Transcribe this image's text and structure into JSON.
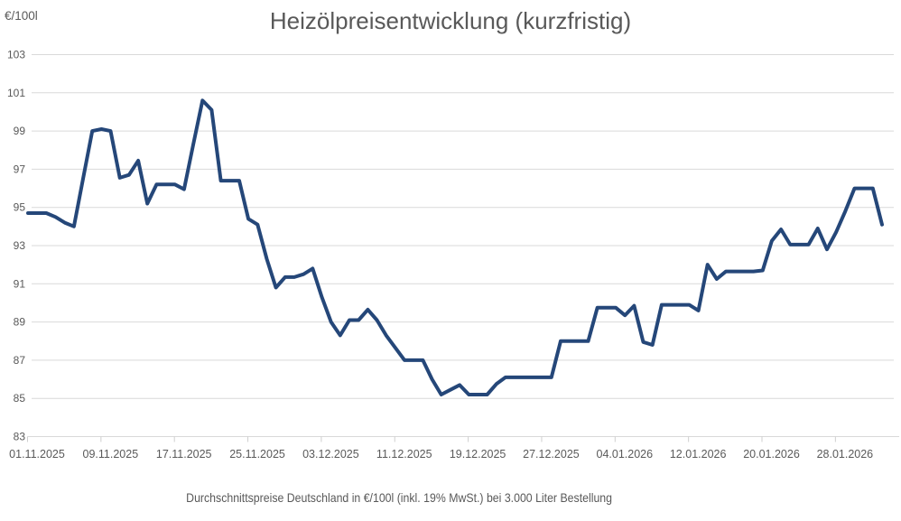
{
  "title": "Heizölpreisentwicklung (kurzfristig)",
  "y_unit_label": "€/100l",
  "footer": "Durchschnittspreise Deutschland in €/100l (inkl. 19% MwSt.) bei 3.000 Liter Bestellung",
  "colors": {
    "line": "#254779",
    "title_text": "#595959",
    "axis_text": "#595959",
    "gridline": "#d9d9d9",
    "tick": "#cfcfcf",
    "background": "#ffffff"
  },
  "chart_data": {
    "type": "line",
    "title": "Heizölpreisentwicklung (kurzfristig)",
    "subtitle": "Durchschnittspreise Deutschland in €/100l (inkl. 19% MwSt.) bei 3.000 Liter Bestellung",
    "ylabel": "€/100l",
    "ylim": [
      83,
      103
    ],
    "yticks": [
      103,
      101,
      99,
      97,
      95,
      93,
      91,
      89,
      87,
      85,
      83
    ],
    "xtick_labels": [
      "01.11.2025",
      "09.11.2025",
      "17.11.2025",
      "25.11.2025",
      "03.12.2025",
      "11.12.2025",
      "19.12.2025",
      "27.12.2025",
      "04.01.2026",
      "12.01.2026",
      "20.01.2026",
      "28.01.2026"
    ],
    "x_start": "01.11.2025",
    "x_step_days": 1,
    "grid": "horizontal-only",
    "legend_position": "none",
    "series": [
      {
        "name": "Heizölpreis",
        "values": [
          94.7,
          94.7,
          94.7,
          94.5,
          94.2,
          94.0,
          96.5,
          99.0,
          99.1,
          99.0,
          96.55,
          96.7,
          97.45,
          95.2,
          96.2,
          96.2,
          96.2,
          95.95,
          98.3,
          100.6,
          100.1,
          96.4,
          96.4,
          96.4,
          94.4,
          94.1,
          92.3,
          90.8,
          91.35,
          91.35,
          91.5,
          91.8,
          90.3,
          89.0,
          88.3,
          89.1,
          89.1,
          89.65,
          89.1,
          88.3,
          87.65,
          87.0,
          87.0,
          87.0,
          86.0,
          85.2,
          85.45,
          85.7,
          85.2,
          85.2,
          85.2,
          85.75,
          86.1,
          86.1,
          86.1,
          86.1,
          86.1,
          86.1,
          88.0,
          88.0,
          88.0,
          88.0,
          89.75,
          89.75,
          89.75,
          89.35,
          89.85,
          87.95,
          87.8,
          89.9,
          89.9,
          89.9,
          89.9,
          89.6,
          92.0,
          91.25,
          91.65,
          91.65,
          91.65,
          91.65,
          91.7,
          93.25,
          93.85,
          93.05,
          93.05,
          93.05,
          93.9,
          92.8,
          93.7,
          94.8,
          96.0,
          96.0,
          96.0,
          94.1
        ]
      }
    ]
  }
}
